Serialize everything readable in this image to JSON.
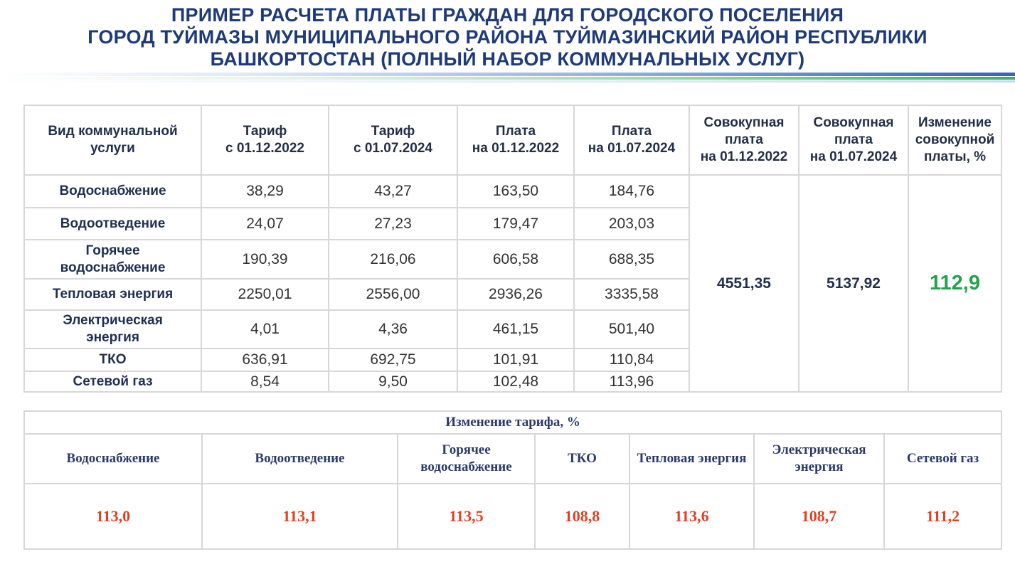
{
  "title": {
    "line1": "ПРИМЕР РАСЧЕТА ПЛАТЫ ГРАЖДАН ДЛЯ ГОРОДСКОГО ПОСЕЛЕНИЯ",
    "line2": "ГОРОД ТУЙМАЗЫ МУНИЦИПАЛЬНОГО РАЙОНА ТУЙМАЗИНСКИЙ РАЙОН РЕСПУБЛИКИ",
    "line3": "БАШКОРТОСТАН (ПОЛНЫЙ НАБОР КОММУНАЛЬНЫХ УСЛУГ)"
  },
  "table1": {
    "headers": [
      [
        "Вид коммунальной",
        "услуги"
      ],
      [
        "Тариф",
        "с 01.12.2022"
      ],
      [
        "Тариф",
        "с 01.07.2024"
      ],
      [
        "Плата",
        "на  01.12.2022"
      ],
      [
        "Плата",
        "на 01.07.2024"
      ],
      [
        "Совокупная",
        "плата",
        "на 01.12.2022"
      ],
      [
        "Совокупная",
        "плата",
        "на 01.07.2024"
      ],
      [
        "Изменение",
        "совокупной",
        "платы, %"
      ]
    ],
    "rows": [
      {
        "service": [
          "Водоснабжение"
        ],
        "tariff_2022": "38,29",
        "tariff_2024": "43,27",
        "pay_2022": "163,50",
        "pay_2024": "184,76"
      },
      {
        "service": [
          "Водоотведение"
        ],
        "tariff_2022": "24,07",
        "tariff_2024": "27,23",
        "pay_2022": "179,47",
        "pay_2024": "203,03"
      },
      {
        "service": [
          "Горячее",
          "водоснабжение"
        ],
        "tariff_2022": "190,39",
        "tariff_2024": "216,06",
        "pay_2022": "606,58",
        "pay_2024": "688,35"
      },
      {
        "service": [
          "Тепловая энергия"
        ],
        "tariff_2022": "2250,01",
        "tariff_2024": "2556,00",
        "pay_2022": "2936,26",
        "pay_2024": "3335,58"
      },
      {
        "service": [
          "Электрическая",
          "энергия"
        ],
        "tariff_2022": "4,01",
        "tariff_2024": "4,36",
        "pay_2022": "461,15",
        "pay_2024": "501,40"
      },
      {
        "service": [
          "ТКО"
        ],
        "tariff_2022": "636,91",
        "tariff_2024": "692,75",
        "pay_2022": "101,91",
        "pay_2024": "110,84"
      },
      {
        "service": [
          "Сетевой газ"
        ],
        "tariff_2022": "8,54",
        "tariff_2024": "9,50",
        "pay_2022": "102,48",
        "pay_2024": "113,96"
      }
    ],
    "aggregate_2022": "4551,35",
    "aggregate_2024": "5137,92",
    "aggregate_change": "112,9"
  },
  "table2": {
    "caption": "Изменение тарифа, %",
    "columns": [
      {
        "label": [
          "Водоснабжение"
        ],
        "value": "113,0"
      },
      {
        "label": [
          "Водоотведение"
        ],
        "value": "113,1"
      },
      {
        "label": [
          "Горячее",
          "водоснабжение"
        ],
        "value": "113,5"
      },
      {
        "label": [
          "ТКО"
        ],
        "value": "108,8"
      },
      {
        "label": [
          "Тепловая энергия"
        ],
        "value": "113,6"
      },
      {
        "label": [
          "Электрическая",
          "энергия"
        ],
        "value": "108,7"
      },
      {
        "label": [
          "Сетевой газ"
        ],
        "value": "111,2"
      }
    ]
  },
  "colors": {
    "title": "#1f3a78",
    "change_green": "#22a24a",
    "tariff_change_red": "#e0401f",
    "border": "#d7d7d7"
  }
}
